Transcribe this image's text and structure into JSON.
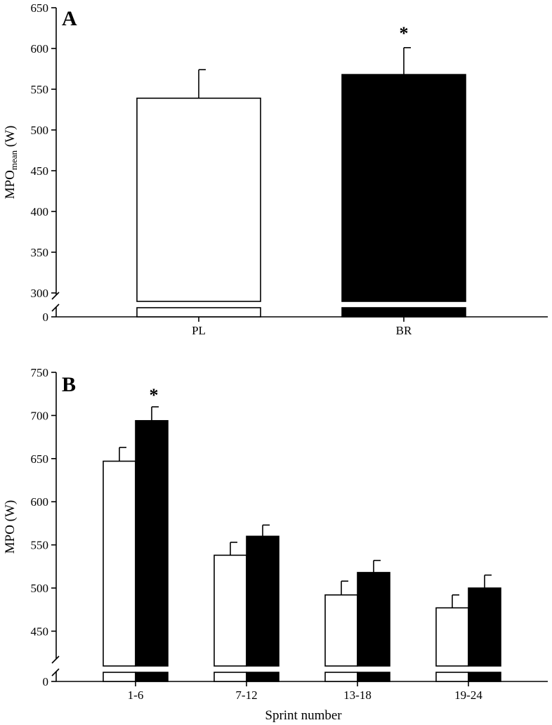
{
  "chart_data": [
    {
      "panel_label": "A",
      "type": "bar",
      "categories": [
        "PL",
        "BR"
      ],
      "values": [
        539,
        568
      ],
      "errors": [
        35,
        33
      ],
      "fills": [
        "#ffffff",
        "#000000"
      ],
      "significance": [
        "",
        "*"
      ],
      "ylabel": "MPO",
      "ylabel_sub": "mean",
      "ylabel_unit": " (W)",
      "yticks": [
        300,
        350,
        400,
        450,
        500,
        550,
        600,
        650
      ],
      "ylim": [
        300,
        650
      ],
      "axis_break": true,
      "break_tick": 0,
      "grid": false
    },
    {
      "panel_label": "B",
      "type": "bar",
      "categories": [
        "1-6",
        "7-12",
        "13-18",
        "19-24"
      ],
      "series": [
        {
          "values": [
            647,
            538,
            492,
            477
          ],
          "errors": [
            16,
            15,
            16,
            15
          ],
          "fill": "#ffffff"
        },
        {
          "values": [
            694,
            560,
            518,
            500
          ],
          "errors": [
            16,
            13,
            14,
            15
          ],
          "fill": "#000000"
        }
      ],
      "significance": [
        "*",
        "",
        "",
        ""
      ],
      "xlabel": "Sprint number",
      "ylabel": "MPO (W)",
      "yticks": [
        450,
        500,
        550,
        600,
        650,
        700,
        750
      ],
      "ylim": [
        430,
        750
      ],
      "axis_break": true,
      "break_tick": 0,
      "grid": false
    }
  ]
}
